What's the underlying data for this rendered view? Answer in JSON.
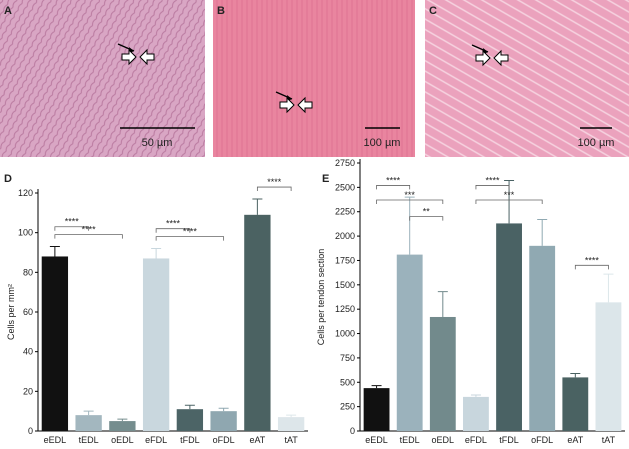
{
  "micrographs": [
    {
      "letter": "A",
      "scale": "50 µm"
    },
    {
      "letter": "B",
      "scale": "100 µm"
    },
    {
      "letter": "C",
      "scale": "100 µm"
    }
  ],
  "chart_data": [
    {
      "type": "bar",
      "letter": "D",
      "ylabel": "Cells per mm²",
      "categories": [
        "eEDL",
        "tEDL",
        "oEDL",
        "eFDL",
        "tFDL",
        "oFDL",
        "eAT",
        "tAT"
      ],
      "values": [
        88,
        8,
        5,
        87,
        11,
        10,
        109,
        7
      ],
      "errors": [
        5,
        2,
        1,
        5,
        2,
        1.5,
        8,
        1
      ],
      "colors": [
        "#111111",
        "#a3b7bf",
        "#758d8e",
        "#c9d7de",
        "#4c6466",
        "#8fa7b0",
        "#4b6262",
        "#dde6ea"
      ],
      "ylim": [
        0,
        120
      ],
      "yticks": [
        0,
        20,
        40,
        60,
        80,
        100,
        120
      ],
      "annotations": [
        {
          "text": "****",
          "from": 0,
          "to": 1,
          "y": 103
        },
        {
          "text": "****",
          "from": 0,
          "to": 2,
          "y": 99
        },
        {
          "text": "****",
          "from": 3,
          "to": 4,
          "y": 102
        },
        {
          "text": "****",
          "from": 3,
          "to": 5,
          "y": 98
        },
        {
          "text": "****",
          "from": 6,
          "to": 7,
          "y": 123
        }
      ]
    },
    {
      "type": "bar",
      "letter": "E",
      "ylabel": "Cells per tendon section",
      "categories": [
        "eEDL",
        "tEDL",
        "oEDL",
        "eFDL",
        "tFDL",
        "oFDL",
        "eAT",
        "tAT"
      ],
      "values": [
        440,
        1810,
        1170,
        350,
        2130,
        1900,
        550,
        1320
      ],
      "errors": [
        25,
        590,
        260,
        20,
        440,
        270,
        40,
        290
      ],
      "colors": [
        "#111111",
        "#9bb2bc",
        "#728a8c",
        "#c8d6dd",
        "#4a6264",
        "#90a9b2",
        "#4a6262",
        "#dce6ea"
      ],
      "ylim": [
        0,
        2750
      ],
      "yticks": [
        0,
        250,
        500,
        750,
        1000,
        1250,
        1500,
        1750,
        2000,
        2250,
        2500,
        2750
      ],
      "annotations": [
        {
          "text": "****",
          "from": 0,
          "to": 1,
          "y": 2520
        },
        {
          "text": "***",
          "from": 0,
          "to": 2,
          "y": 2370
        },
        {
          "text": "**",
          "from": 1,
          "to": 2,
          "y": 2200
        },
        {
          "text": "****",
          "from": 3,
          "to": 4,
          "y": 2520
        },
        {
          "text": "***",
          "from": 3,
          "to": 5,
          "y": 2370
        },
        {
          "text": "****",
          "from": 6,
          "to": 7,
          "y": 1700
        }
      ]
    }
  ]
}
